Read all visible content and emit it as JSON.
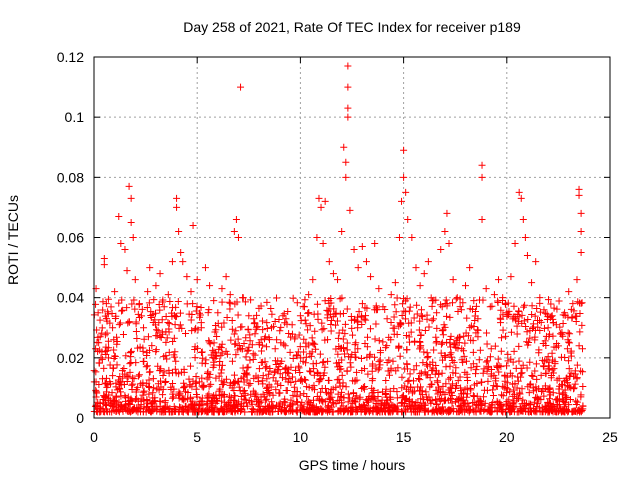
{
  "chart_data": {
    "type": "scatter",
    "title": "Day 258 of 2021, Rate Of TEC Index for receiver p189",
    "xlabel": "GPS time / hours",
    "ylabel": "ROTI / TECUs",
    "xlim": [
      0,
      25
    ],
    "ylim": [
      0,
      0.12
    ],
    "xticks": [
      0,
      5,
      10,
      15,
      20,
      25
    ],
    "yticks": [
      0,
      0.02,
      0.04,
      0.06,
      0.08,
      0.1,
      0.12
    ],
    "xtick_labels": [
      "0",
      "5",
      "10",
      "15",
      "20",
      "25"
    ],
    "ytick_labels": [
      "0",
      "0.02",
      "0.04",
      "0.06",
      "0.08",
      "0.1",
      "0.12"
    ],
    "grid": true,
    "marker": "+",
    "series": [
      {
        "name": "",
        "color": "#ff0000",
        "points": [
          [
            0.1,
            0.043
          ],
          [
            0.1,
            0.012
          ],
          [
            0.2,
            0.035
          ],
          [
            0.3,
            0.027
          ],
          [
            0.5,
            0.053
          ],
          [
            0.5,
            0.051
          ],
          [
            0.6,
            0.038
          ],
          [
            0.7,
            0.02
          ],
          [
            0.9,
            0.03
          ],
          [
            1.0,
            0.042
          ],
          [
            1.2,
            0.067
          ],
          [
            1.3,
            0.058
          ],
          [
            1.5,
            0.056
          ],
          [
            1.6,
            0.049
          ],
          [
            1.7,
            0.077
          ],
          [
            1.8,
            0.073
          ],
          [
            1.8,
            0.065
          ],
          [
            1.9,
            0.06
          ],
          [
            2.0,
            0.046
          ],
          [
            2.2,
            0.038
          ],
          [
            2.4,
            0.03
          ],
          [
            2.6,
            0.042
          ],
          [
            2.7,
            0.05
          ],
          [
            3.0,
            0.044
          ],
          [
            3.2,
            0.048
          ],
          [
            3.4,
            0.037
          ],
          [
            3.6,
            0.041
          ],
          [
            3.8,
            0.052
          ],
          [
            4.0,
            0.073
          ],
          [
            4.0,
            0.07
          ],
          [
            4.1,
            0.062
          ],
          [
            4.2,
            0.055
          ],
          [
            4.3,
            0.052
          ],
          [
            4.5,
            0.047
          ],
          [
            4.7,
            0.042
          ],
          [
            4.8,
            0.064
          ],
          [
            5.0,
            0.046
          ],
          [
            5.2,
            0.03
          ],
          [
            5.4,
            0.05
          ],
          [
            5.6,
            0.044
          ],
          [
            5.8,
            0.039
          ],
          [
            6.0,
            0.035
          ],
          [
            6.2,
            0.043
          ],
          [
            6.4,
            0.047
          ],
          [
            6.6,
            0.041
          ],
          [
            6.8,
            0.062
          ],
          [
            6.9,
            0.066
          ],
          [
            7.0,
            0.06
          ],
          [
            7.1,
            0.11
          ],
          [
            7.2,
            0.04
          ],
          [
            7.5,
            0.034
          ],
          [
            7.8,
            0.028
          ],
          [
            8.0,
            0.025
          ],
          [
            8.3,
            0.027
          ],
          [
            8.6,
            0.03
          ],
          [
            9.0,
            0.029
          ],
          [
            9.3,
            0.033
          ],
          [
            9.6,
            0.031
          ],
          [
            10.0,
            0.034
          ],
          [
            10.2,
            0.037
          ],
          [
            10.4,
            0.041
          ],
          [
            10.6,
            0.046
          ],
          [
            10.8,
            0.06
          ],
          [
            10.9,
            0.073
          ],
          [
            11.0,
            0.07
          ],
          [
            11.1,
            0.058
          ],
          [
            11.2,
            0.072
          ],
          [
            11.4,
            0.052
          ],
          [
            11.6,
            0.048
          ],
          [
            11.8,
            0.046
          ],
          [
            12.0,
            0.062
          ],
          [
            12.1,
            0.09
          ],
          [
            12.2,
            0.085
          ],
          [
            12.2,
            0.08
          ],
          [
            12.3,
            0.117
          ],
          [
            12.3,
            0.11
          ],
          [
            12.3,
            0.103
          ],
          [
            12.3,
            0.1
          ],
          [
            12.4,
            0.069
          ],
          [
            12.6,
            0.056
          ],
          [
            12.8,
            0.05
          ],
          [
            13.0,
            0.057
          ],
          [
            13.2,
            0.052
          ],
          [
            13.4,
            0.047
          ],
          [
            13.6,
            0.058
          ],
          [
            13.8,
            0.043
          ],
          [
            14.0,
            0.037
          ],
          [
            14.2,
            0.033
          ],
          [
            14.4,
            0.041
          ],
          [
            14.6,
            0.045
          ],
          [
            14.8,
            0.06
          ],
          [
            14.9,
            0.072
          ],
          [
            15.0,
            0.089
          ],
          [
            15.0,
            0.08
          ],
          [
            15.1,
            0.075
          ],
          [
            15.2,
            0.066
          ],
          [
            15.4,
            0.06
          ],
          [
            15.6,
            0.05
          ],
          [
            15.8,
            0.044
          ],
          [
            16.0,
            0.048
          ],
          [
            16.2,
            0.052
          ],
          [
            16.4,
            0.039
          ],
          [
            16.6,
            0.035
          ],
          [
            16.8,
            0.056
          ],
          [
            17.0,
            0.062
          ],
          [
            17.1,
            0.068
          ],
          [
            17.2,
            0.058
          ],
          [
            17.4,
            0.046
          ],
          [
            17.6,
            0.04
          ],
          [
            17.8,
            0.036
          ],
          [
            18.0,
            0.044
          ],
          [
            18.2,
            0.05
          ],
          [
            18.4,
            0.039
          ],
          [
            18.6,
            0.033
          ],
          [
            18.8,
            0.084
          ],
          [
            18.8,
            0.08
          ],
          [
            18.8,
            0.066
          ],
          [
            19.0,
            0.043
          ],
          [
            19.2,
            0.037
          ],
          [
            19.4,
            0.041
          ],
          [
            19.6,
            0.046
          ],
          [
            19.8,
            0.04
          ],
          [
            20.0,
            0.035
          ],
          [
            20.2,
            0.047
          ],
          [
            20.4,
            0.058
          ],
          [
            20.6,
            0.075
          ],
          [
            20.7,
            0.073
          ],
          [
            20.8,
            0.066
          ],
          [
            20.9,
            0.06
          ],
          [
            21.0,
            0.054
          ],
          [
            21.2,
            0.045
          ],
          [
            21.4,
            0.052
          ],
          [
            21.6,
            0.04
          ],
          [
            21.8,
            0.036
          ],
          [
            22.0,
            0.03
          ],
          [
            22.2,
            0.034
          ],
          [
            22.4,
            0.031
          ],
          [
            22.6,
            0.028
          ],
          [
            22.8,
            0.035
          ],
          [
            23.0,
            0.042
          ],
          [
            23.2,
            0.038
          ],
          [
            23.4,
            0.046
          ],
          [
            23.5,
            0.076
          ],
          [
            23.5,
            0.074
          ],
          [
            23.6,
            0.068
          ],
          [
            23.6,
            0.062
          ],
          [
            23.6,
            0.055
          ]
        ]
      }
    ]
  }
}
